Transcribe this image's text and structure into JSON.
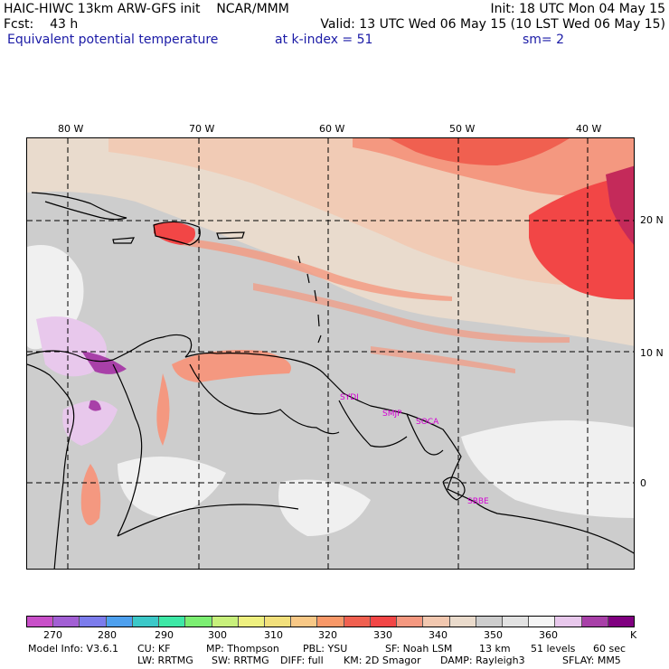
{
  "header": {
    "title": "HAIC-HIWC 13km ARW-GFS init",
    "agency": "NCAR/MMM",
    "init": "Init: 18 UTC Mon 04 May 15",
    "fcst_label": "Fcst:",
    "fcst_value": "43 h",
    "valid": "Valid: 13 UTC Wed 06 May 15 (10 LST Wed 06 May 15)",
    "field": "Equivalent potential temperature",
    "level": "at k-index =  51",
    "smoothing": "sm= 2"
  },
  "map": {
    "lon_labels": [
      "80 W",
      "70 W",
      "60 W",
      "50 W",
      "40 W"
    ],
    "lat_labels": [
      "20 N",
      "10 N",
      "0"
    ],
    "stations": [
      "SYDI",
      "SMJP",
      "SOCA",
      "SBBE"
    ]
  },
  "colorbar": {
    "labels": [
      "270",
      "280",
      "290",
      "300",
      "310",
      "320",
      "330",
      "340",
      "350",
      "360",
      "K"
    ],
    "colors": [
      "#c84fc8",
      "#a25fd4",
      "#7c7cec",
      "#4ea0ee",
      "#3cc8c8",
      "#3ee8a6",
      "#7cee72",
      "#c8f07c",
      "#eef080",
      "#f2e07c",
      "#f8c886",
      "#f89868",
      "#f06050",
      "#f24646",
      "#f49880",
      "#f2c8b0",
      "#eadbcc",
      "#cdcdcd",
      "#e2e2e2",
      "#f4f4f4",
      "#e8c8ec",
      "#a840a8",
      "#800080"
    ]
  },
  "footer": {
    "model_info": "Model Info: V3.6.1",
    "cu": "CU: KF",
    "mp": "MP: Thompson",
    "pbl": "PBL: YSU",
    "sf": "SF: Noah LSM",
    "res": "13 km",
    "levels": "51 levels",
    "dt": "60 sec",
    "lw": "LW: RRTMG",
    "sw": "SW: RRTMG",
    "diff": "DIFF: full",
    "km": "KM: 2D Smagor",
    "damp": "DAMP: Rayleigh3",
    "sflay": "SFLAY: MM5"
  }
}
